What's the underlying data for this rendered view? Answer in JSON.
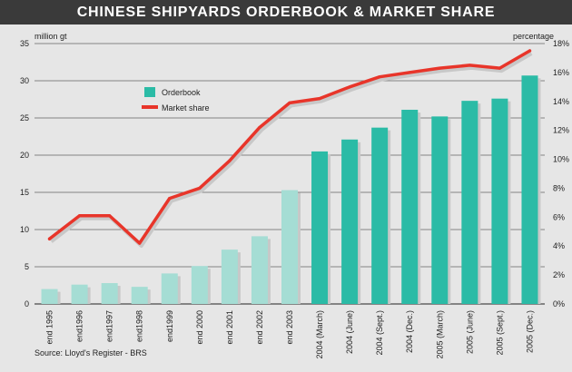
{
  "chart_data": {
    "type": "bar",
    "title": "CHINESE SHIPYARDS ORDERBOOK & MARKET SHARE",
    "ylabel_left": "million gt",
    "ylabel_right": "percentage",
    "ylim_left": [
      0,
      35
    ],
    "ylim_right": [
      0,
      18
    ],
    "yticks_left": [
      "0",
      "5",
      "10",
      "15",
      "20",
      "25",
      "30",
      "35"
    ],
    "yticks_right": [
      "0%",
      "2%",
      "4%",
      "6%",
      "8%",
      "10%",
      "12%",
      "14%",
      "16%",
      "18%"
    ],
    "categories": [
      "end 1995",
      "end1996",
      "end1997",
      "end1998",
      "end1999",
      "end 2000",
      "end 2001",
      "end 2002",
      "end 2003",
      "2004 (March)",
      "2004 (June)",
      "2004 (Sept.)",
      "2004 (Dec.)",
      "2005 (March)",
      "2005 (June)",
      "2005 (Sept.)",
      "2005 (Dec.)"
    ],
    "series": [
      {
        "name": "Orderbook",
        "axis": "left",
        "values": [
          2.0,
          2.6,
          2.8,
          2.3,
          4.1,
          5.1,
          7.3,
          9.1,
          15.3,
          20.5,
          22.1,
          23.7,
          26.1,
          25.2,
          27.3,
          27.6,
          30.7
        ]
      },
      {
        "name": "Market share",
        "axis": "right",
        "values": [
          4.5,
          6.1,
          6.1,
          4.2,
          7.3,
          8.0,
          9.9,
          12.2,
          13.9,
          14.2,
          15.0,
          15.7,
          16.0,
          16.3,
          16.5,
          16.3,
          17.5
        ]
      }
    ],
    "legend_position": "upper-left",
    "grid": true,
    "colors": {
      "bar_light": "#a5ddd4",
      "bar_dark": "#2bbba6",
      "line": "#e8352a",
      "shadow": "#c8c8c8",
      "grid": "#222222"
    },
    "source": "Source: Lloyd's Register - BRS"
  }
}
